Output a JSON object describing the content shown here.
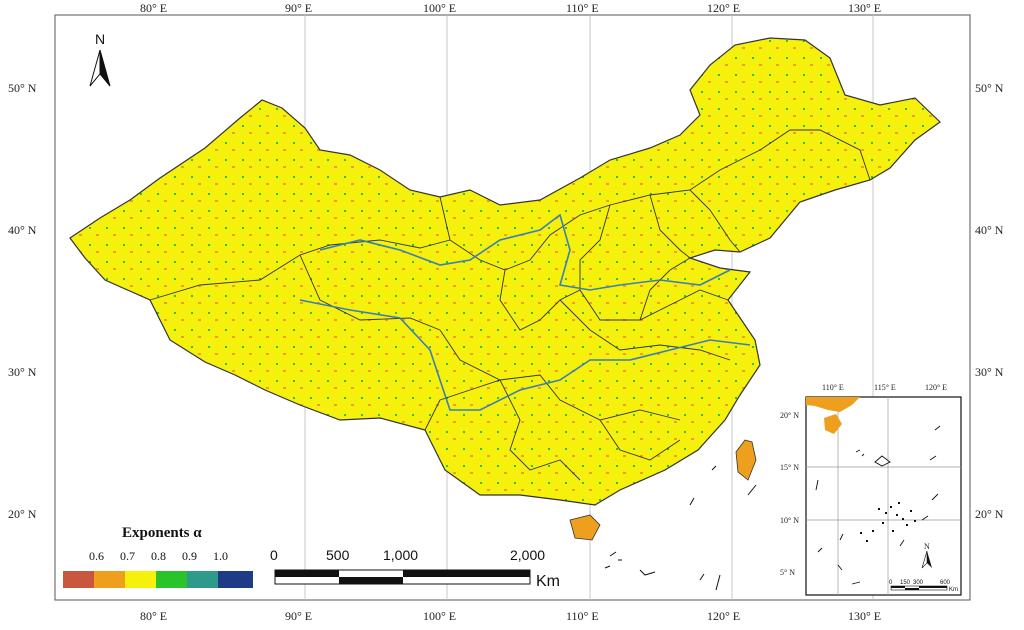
{
  "map": {
    "colors": {
      "c06": "#c9563e",
      "c07": "#ee9f1e",
      "c08": "#f5f10c",
      "c09": "#2ac32a",
      "c10": "#2e9a8a",
      "c11": "#1d3b87",
      "river": "#3a7fb4",
      "border": "#333333"
    },
    "top_ticks": [
      "80° E",
      "90° E",
      "100° E",
      "110° E",
      "120° E",
      "130° E"
    ],
    "bottom_ticks": [
      "80° E",
      "90° E",
      "100° E",
      "110° E",
      "120° E",
      "130° E"
    ],
    "left_ticks": [
      "50° N",
      "40° N",
      "30° N",
      "20° N"
    ],
    "right_ticks": [
      "50° N",
      "40° N",
      "30° N",
      "20° N"
    ],
    "north_label": "N"
  },
  "legend": {
    "title": "Exponents α",
    "labels": [
      "0.6",
      "0.7",
      "0.8",
      "0.9",
      "1.0"
    ]
  },
  "scalebar": {
    "labels": [
      "0",
      "500",
      "1,000",
      "2,000"
    ],
    "unit": "Km"
  },
  "inset": {
    "top_ticks": [
      "110° E",
      "115° E",
      "120° E"
    ],
    "left_ticks": [
      "20° N",
      "15° N",
      "10° N",
      "5° N"
    ],
    "north_label": "N",
    "scale_labels": [
      "0",
      "150",
      "300",
      "600"
    ],
    "scale_unit": "Km"
  }
}
